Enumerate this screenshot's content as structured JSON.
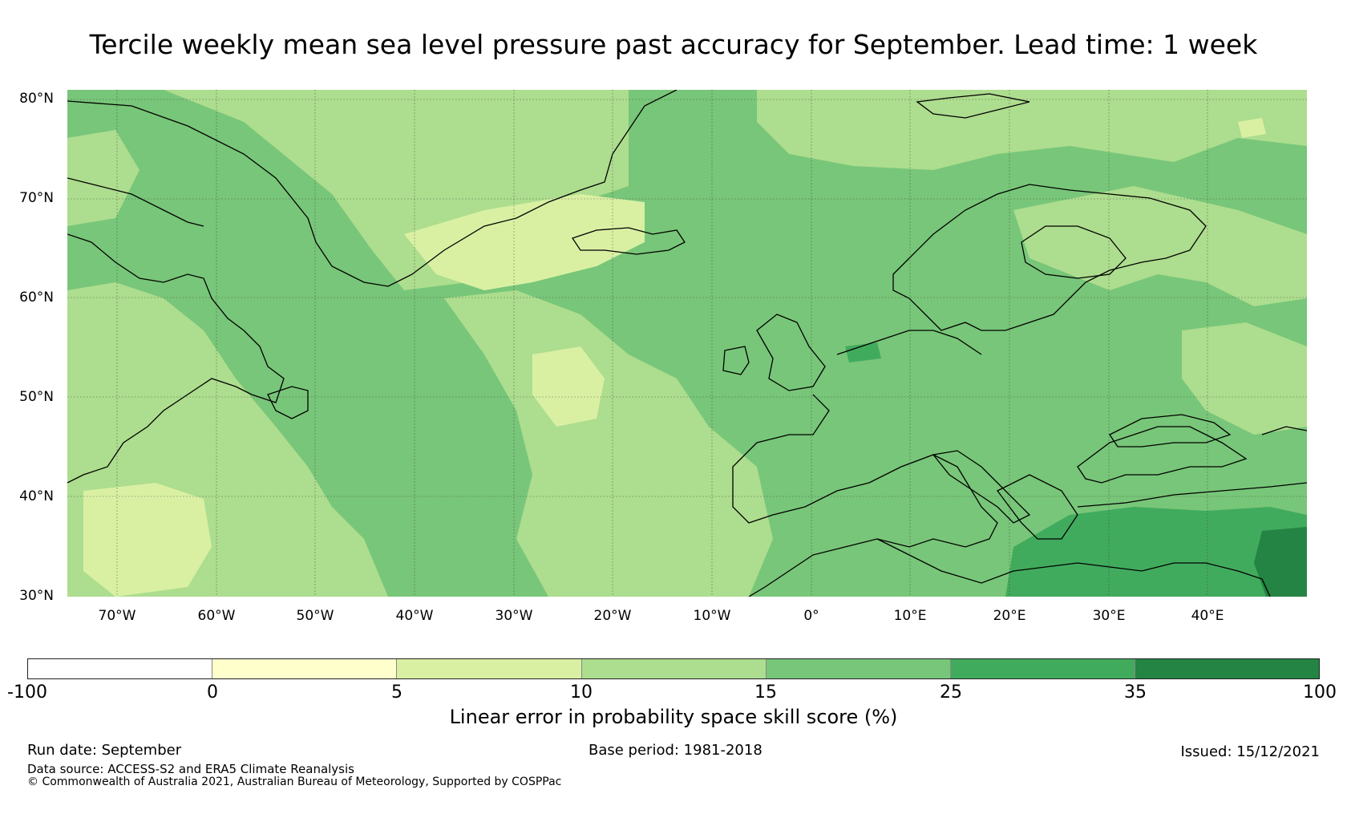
{
  "title": "Tercile weekly mean sea level pressure past accuracy for September. Lead time: 1 week",
  "map": {
    "region": "North Atlantic and Europe",
    "lon_range": [
      -75,
      50
    ],
    "lat_range": [
      30,
      81
    ],
    "lat_labels": [
      "80°N",
      "70°N",
      "60°N",
      "50°N",
      "40°N",
      "30°N"
    ],
    "lon_labels": [
      "70°W",
      "60°W",
      "50°W",
      "40°W",
      "30°W",
      "20°W",
      "10°W",
      "0°",
      "10°E",
      "20°E",
      "30°E",
      "40°E"
    ]
  },
  "colorbar": {
    "ticks": [
      "-100",
      "0",
      "5",
      "10",
      "15",
      "25",
      "35",
      "100"
    ],
    "colors": [
      "#ffffff",
      "#ffffcc",
      "#d9f0a3",
      "#addd8e",
      "#78c679",
      "#41ab5d",
      "#238443"
    ],
    "label": "Linear error in probability space skill score (%)"
  },
  "footer": {
    "run_date": "Run date: September",
    "base_period": "Base period: 1981-2018",
    "issued": "Issued: 15/12/2021",
    "data_source": "Data source: ACCESS-S2 and ERA5 Climate Reanalysis",
    "copyright": "© Commonwealth of Australia 2021, Australian Bureau of Meteorology, Supported by COSPPac"
  }
}
